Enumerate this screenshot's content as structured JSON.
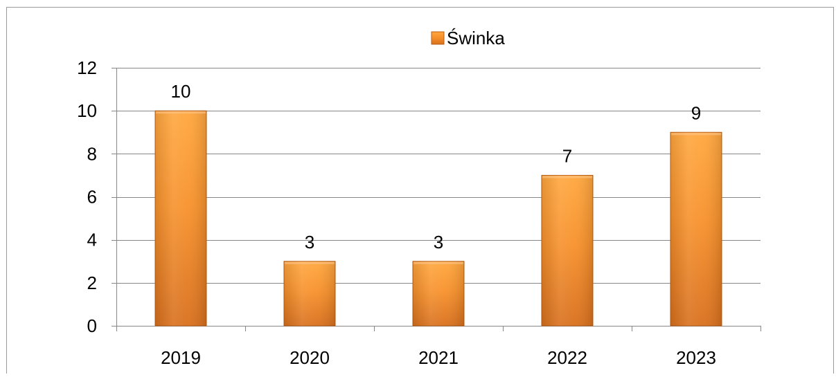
{
  "chart_data": {
    "type": "bar",
    "categories": [
      "2019",
      "2020",
      "2021",
      "2022",
      "2023"
    ],
    "series": [
      {
        "name": "Świnka",
        "values": [
          10,
          3,
          3,
          7,
          9
        ]
      }
    ],
    "title": "",
    "xlabel": "",
    "ylabel": "",
    "ylim": [
      0,
      12
    ],
    "yticks": [
      "0",
      "2",
      "4",
      "6",
      "8",
      "10",
      "12"
    ],
    "data_labels": [
      "10",
      "3",
      "3",
      "7",
      "9"
    ],
    "grid": true,
    "legend_position": "top-center",
    "colors": {
      "bar_light": "#ffa63d",
      "bar_mid": "#f7912b",
      "bar_dark": "#d86f1c",
      "bar_edge": "#b85c12",
      "grid": "#868686",
      "axis": "#868686",
      "frame": "#9a9a9a"
    }
  }
}
